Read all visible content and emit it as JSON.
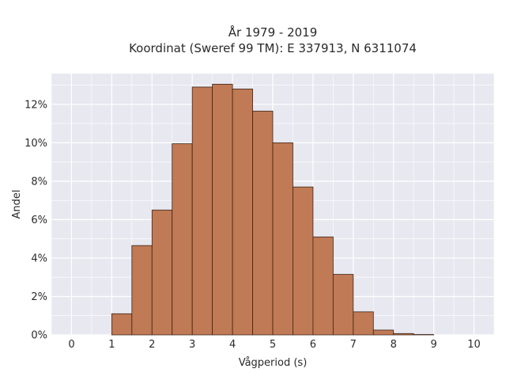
{
  "chart_data": {
    "type": "bar",
    "title_lines": [
      "År 1979 - 2019",
      "Koordinat (Sweref 99 TM): E 337913, N 6311074"
    ],
    "xlabel": "Vågperiod (s)",
    "ylabel": "Andel",
    "xlim": [
      -0.5,
      10.5
    ],
    "ylim": [
      0,
      13.6
    ],
    "x_ticks": [
      0,
      1,
      2,
      3,
      4,
      5,
      6,
      7,
      8,
      9,
      10
    ],
    "y_ticks": [
      0,
      2,
      4,
      6,
      8,
      10,
      12
    ],
    "y_tick_suffix": "%",
    "bin_width": 0.5,
    "bins": [
      {
        "start": 1.0,
        "value": 1.1
      },
      {
        "start": 1.5,
        "value": 4.65
      },
      {
        "start": 2.0,
        "value": 6.5
      },
      {
        "start": 2.5,
        "value": 9.95
      },
      {
        "start": 3.0,
        "value": 12.9
      },
      {
        "start": 3.5,
        "value": 13.05
      },
      {
        "start": 4.0,
        "value": 12.8
      },
      {
        "start": 4.5,
        "value": 11.65
      },
      {
        "start": 5.0,
        "value": 10.0
      },
      {
        "start": 5.5,
        "value": 7.7
      },
      {
        "start": 6.0,
        "value": 5.1
      },
      {
        "start": 6.5,
        "value": 3.15
      },
      {
        "start": 7.0,
        "value": 1.2
      },
      {
        "start": 7.5,
        "value": 0.25
      },
      {
        "start": 8.0,
        "value": 0.07
      },
      {
        "start": 8.5,
        "value": 0.02
      }
    ],
    "grid": true,
    "bar_color": "#c07a55",
    "bar_edge_color": "#3d2416",
    "plot_background": "#e8e8f0"
  }
}
